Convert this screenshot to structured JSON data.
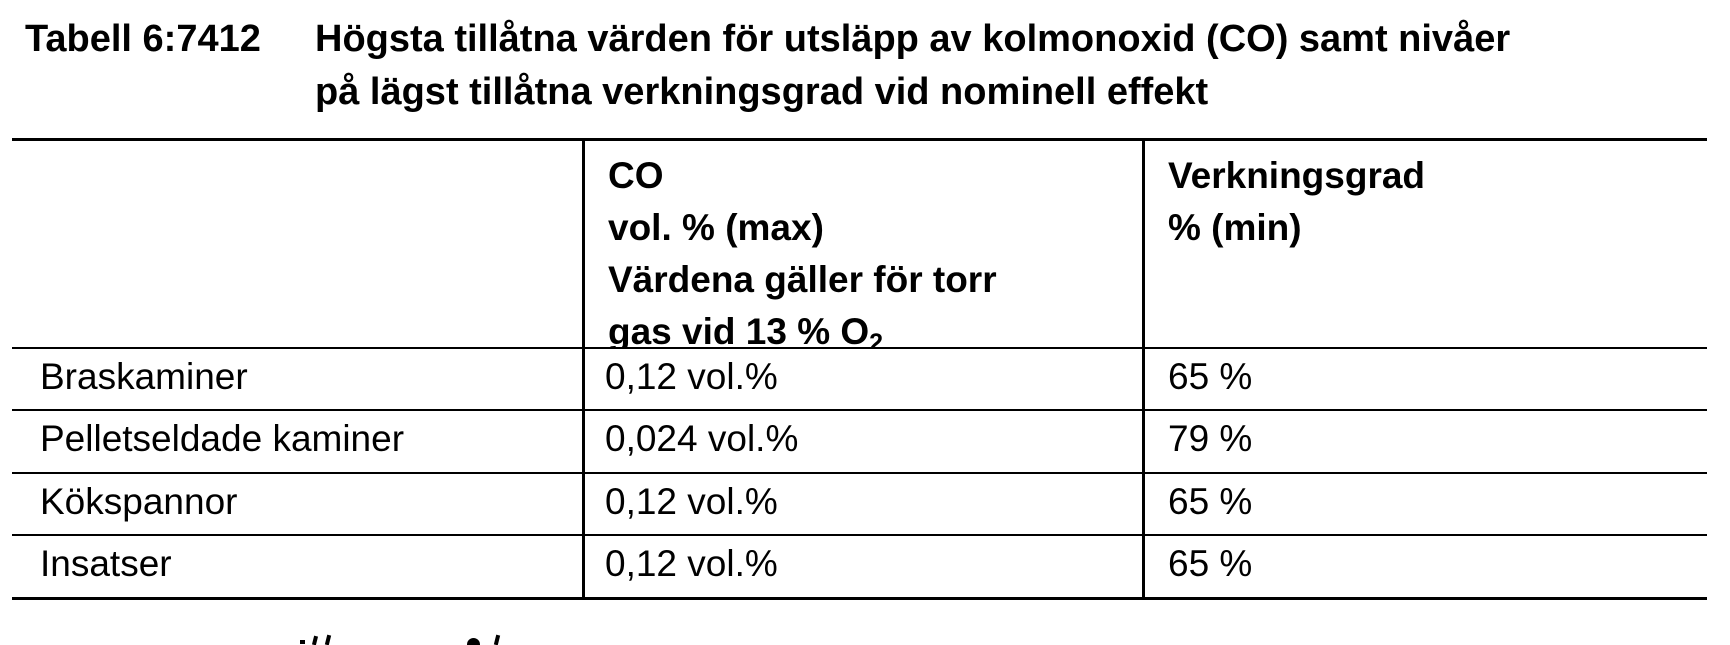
{
  "document": {
    "table_label": "Tabell 6:7412",
    "title_line1": "Högsta tillåtna värden för utsläpp av kolmonoxid (CO) samt nivåer",
    "title_line2": "på lägst tillåtna verkningsgrad vid nominell effekt"
  },
  "table": {
    "header": {
      "category": "",
      "co": {
        "line1": "CO",
        "line2": "vol. % (max)",
        "line3": "Värdena gäller för torr",
        "line4_text": "gas vid 13 % O",
        "line4_subscript": "2"
      },
      "efficiency": {
        "line1": "Verkningsgrad",
        "line2": "% (min)"
      }
    },
    "rows": [
      {
        "category": "Braskaminer",
        "co_max": "0,12 vol.%",
        "efficiency_min": "65 %"
      },
      {
        "category": "Pelletseldade kaminer",
        "co_max": "0,024 vol.%",
        "efficiency_min": "79 %"
      },
      {
        "category": "Kökspannor",
        "co_max": "0,12 vol.%",
        "efficiency_min": "65 %"
      },
      {
        "category": "Insatser",
        "co_max": "0,12 vol.%",
        "efficiency_min": "65 %"
      }
    ]
  },
  "artifacts": {
    "bottom_edge_cutoff_text": "tops of glyphs from a following text line, cut off by image edge (illegible)"
  },
  "colors": {
    "background": "#ffffff",
    "text": "#000000",
    "border": "#000000"
  }
}
